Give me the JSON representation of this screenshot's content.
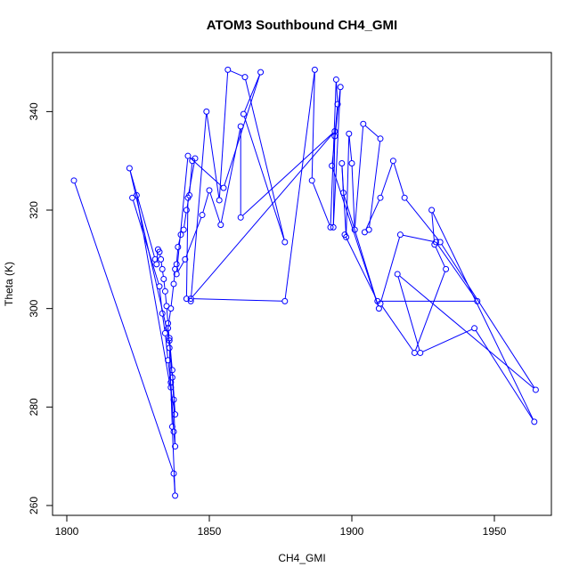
{
  "chart_data": {
    "type": "scatter",
    "title": "ATOM3 Southbound CH4_GMI",
    "xlabel": "CH4_GMI",
    "ylabel": "Theta (K)",
    "xlim": [
      1795,
      1970
    ],
    "ylim": [
      258,
      352
    ],
    "x_ticks": [
      "1800",
      "1850",
      "1900",
      "1950"
    ],
    "y_ticks": [
      "260",
      "280",
      "300",
      "320",
      "340"
    ],
    "grid": false,
    "legend": "none",
    "line_color": "#0000ff",
    "marker": "open circle",
    "series": [
      {
        "values_note": "",
        "x": [
          1802.5,
          1837.5,
          1838.0,
          1837.0,
          1836.5,
          1836.0,
          1835.5,
          1835.0,
          1834.5,
          1834.0,
          1833.5,
          1833.0,
          1832.5,
          1832.0,
          1831.5,
          1831.0,
          1822.0,
          1836.0,
          1837.0,
          1837.5,
          1838.0,
          1837.5,
          1836.5,
          1835.5,
          1834.5,
          1833.5,
          1832.5,
          1823.0,
          1824.5,
          1838.0,
          1837.0,
          1836.0,
          1835.5,
          1836.5,
          1837.5,
          1838.0,
          1838.5,
          1839.0,
          1840.0,
          1841.0,
          1842.0,
          1843.0,
          1844.0,
          1845.0,
          1842.5,
          1842.0,
          1843.5,
          1849.0,
          1853.5,
          1856.5,
          1862.5,
          1876.5,
          1862.0,
          1868.0,
          1855.0,
          1842.5,
          1838.5,
          1841.5,
          1847.5,
          1850.0,
          1854.0,
          1861.0,
          1861.0,
          1894.0,
          1843.5,
          1876.5,
          1887.0,
          1886.0,
          1892.5,
          1894.5,
          1895.0,
          1894.0,
          1893.5,
          1896.0,
          1893.0,
          1909.5,
          1897.0,
          1896.5,
          1898.0,
          1899.0,
          1900.0,
          1901.0,
          1904.0,
          1910.0,
          1906.0,
          1904.5,
          1910.0,
          1914.5,
          1918.5,
          1931.0,
          1964.5,
          1916.0,
          1924.0,
          1943.0,
          1964.0,
          1928.0,
          1929.0,
          1933.0,
          1922.0,
          1910.0,
          1917.0,
          1929.5,
          1944.0,
          1909.0,
          1897.5
        ],
        "y": [
          326.0,
          266.5,
          262.0,
          276.0,
          284.0,
          292.0,
          297.0,
          300.5,
          303.5,
          306.0,
          308.0,
          310.0,
          311.5,
          312.0,
          309.0,
          310.0,
          328.5,
          293.5,
          286.0,
          281.5,
          272.0,
          275.0,
          285.0,
          289.5,
          295.0,
          299.0,
          304.5,
          322.5,
          323.0,
          278.5,
          287.5,
          294.0,
          296.0,
          300.0,
          305.0,
          308.0,
          309.0,
          312.5,
          315.0,
          316.0,
          320.0,
          323.0,
          330.0,
          330.5,
          322.5,
          302.0,
          301.5,
          340.0,
          322.0,
          348.5,
          347.0,
          313.5,
          339.5,
          348.0,
          324.5,
          331.0,
          307.0,
          310.0,
          319.0,
          324.0,
          317.0,
          337.0,
          318.5,
          336.0,
          302.0,
          301.5,
          348.5,
          326.0,
          316.5,
          346.5,
          341.5,
          335.0,
          316.5,
          345.0,
          329.0,
          300.0,
          323.5,
          329.5,
          314.5,
          335.5,
          329.5,
          316.0,
          337.5,
          334.5,
          316.0,
          315.5,
          322.5,
          330.0,
          322.5,
          313.5,
          283.5,
          307.0,
          291.0,
          296.0,
          277.0,
          320.0,
          313.0,
          308.0,
          291.0,
          301.0,
          315.0,
          313.5,
          301.5,
          301.5,
          315.0
        ]
      }
    ]
  }
}
